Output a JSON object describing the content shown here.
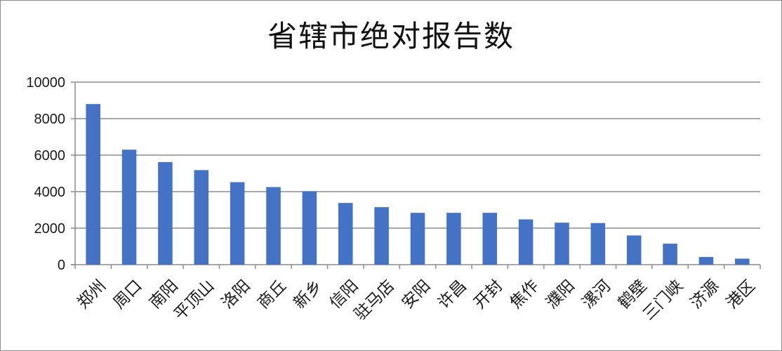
{
  "chart_data": {
    "type": "bar",
    "title": "省辖市绝对报告数",
    "xlabel": "",
    "ylabel": "",
    "ylim": [
      0,
      10000
    ],
    "yticks": [
      0,
      2000,
      4000,
      6000,
      8000,
      10000
    ],
    "grid": true,
    "legend": "none",
    "bar_color": "#4472c4",
    "categories": [
      "郑州",
      "周口",
      "南阳",
      "平顶山",
      "洛阳",
      "商丘",
      "新乡",
      "信阳",
      "驻马店",
      "安阳",
      "许昌",
      "开封",
      "焦作",
      "濮阳",
      "漯河",
      "鹤壁",
      "三门峡",
      "济源",
      "港区"
    ],
    "values": [
      8800,
      6300,
      5620,
      5180,
      4520,
      4250,
      4020,
      3380,
      3150,
      2840,
      2840,
      2840,
      2480,
      2300,
      2280,
      1600,
      1150,
      420,
      330
    ]
  }
}
